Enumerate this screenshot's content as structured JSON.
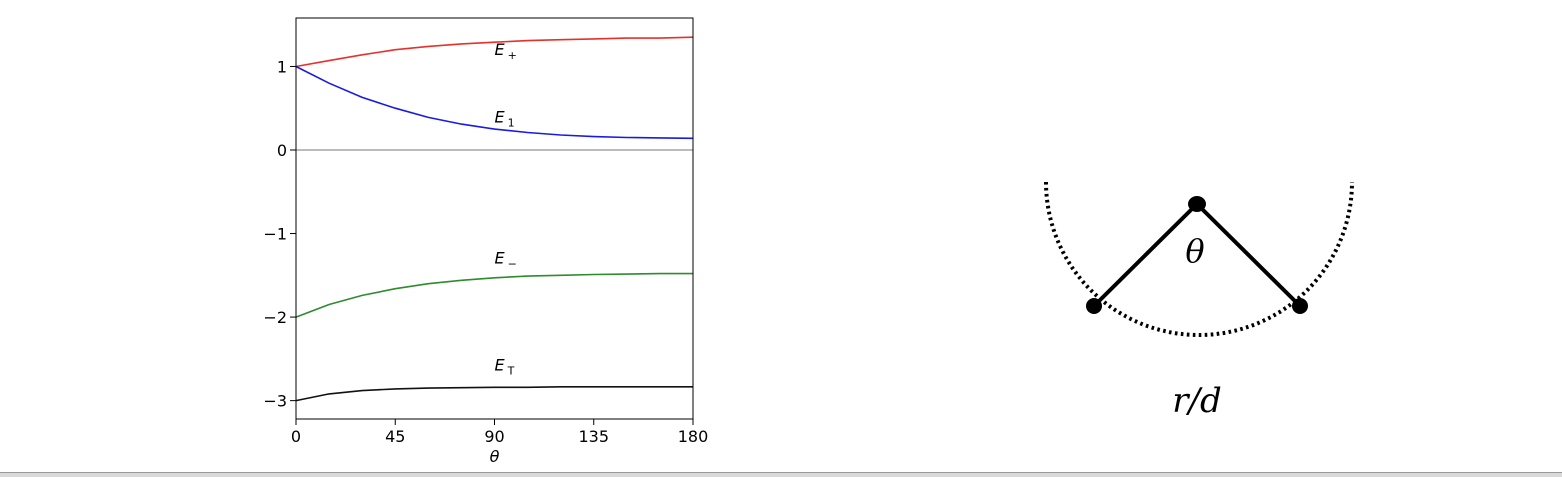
{
  "chart_data": {
    "type": "line",
    "title": "",
    "xlabel": "θ",
    "ylabel": "",
    "xlim": [
      0,
      180
    ],
    "ylim": [
      -3.22,
      1.58
    ],
    "xticks": [
      0,
      45,
      90,
      135,
      180
    ],
    "yticks": [
      1,
      0,
      -1,
      -2,
      -3
    ],
    "ytick_labels": [
      "1",
      "0",
      "−1",
      "−2",
      "−3"
    ],
    "zero_line": true,
    "grid": false,
    "series": [
      {
        "name": "E",
        "subscript": "+",
        "color": "#e8302a",
        "label_at": [
          90,
          1.14
        ],
        "x": [
          0,
          15,
          30,
          45,
          60,
          75,
          90,
          105,
          120,
          135,
          150,
          165,
          180
        ],
        "y": [
          1.0,
          1.07,
          1.14,
          1.2,
          1.24,
          1.27,
          1.29,
          1.31,
          1.32,
          1.33,
          1.34,
          1.34,
          1.35
        ]
      },
      {
        "name": "E",
        "subscript": "1",
        "color": "#1a1ae6",
        "label_at": [
          90,
          0.33
        ],
        "x": [
          0,
          15,
          30,
          45,
          60,
          75,
          90,
          105,
          120,
          135,
          150,
          165,
          180
        ],
        "y": [
          1.0,
          0.8,
          0.63,
          0.5,
          0.39,
          0.31,
          0.25,
          0.21,
          0.18,
          0.16,
          0.15,
          0.145,
          0.14
        ]
      },
      {
        "name": "E",
        "subscript": "−",
        "color": "#2e8b2e",
        "label_at": [
          90,
          -1.36
        ],
        "x": [
          0,
          15,
          30,
          45,
          60,
          75,
          90,
          105,
          120,
          135,
          150,
          165,
          180
        ],
        "y": [
          -2.0,
          -1.85,
          -1.74,
          -1.66,
          -1.6,
          -1.56,
          -1.53,
          -1.51,
          -1.5,
          -1.49,
          -1.485,
          -1.48,
          -1.48
        ]
      },
      {
        "name": "E",
        "subscript": "T",
        "color": "#111111",
        "label_at": [
          90,
          -2.64
        ],
        "x": [
          0,
          15,
          30,
          45,
          60,
          75,
          90,
          105,
          120,
          135,
          150,
          165,
          180
        ],
        "y": [
          -3.0,
          -2.92,
          -2.88,
          -2.86,
          -2.85,
          -2.845,
          -2.84,
          -2.84,
          -2.835,
          -2.835,
          -2.835,
          -2.835,
          -2.835
        ]
      }
    ]
  },
  "diagram": {
    "angle_label": "θ",
    "distance_label": "r/d"
  }
}
